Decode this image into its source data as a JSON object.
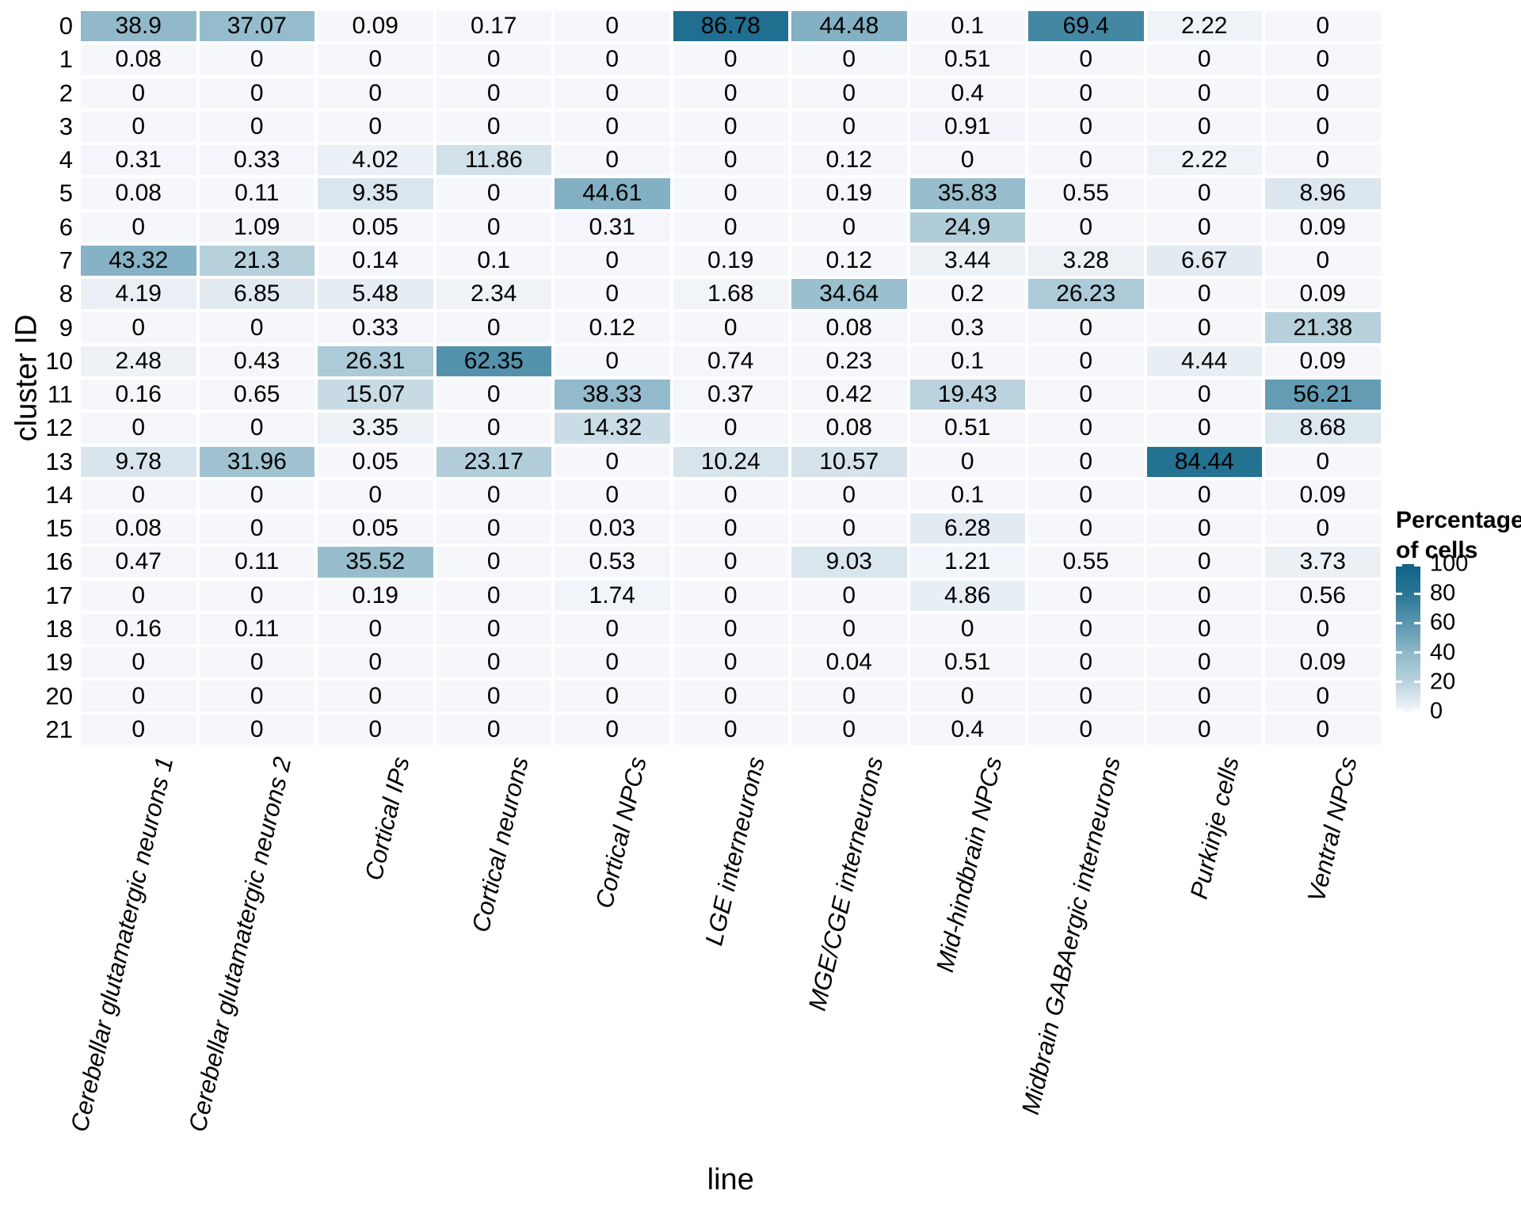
{
  "figure": {
    "x_axis_title": "line",
    "y_axis_title": "cluster ID"
  },
  "legend": {
    "title_line1": "Percentage",
    "title_line2": "of cells",
    "ticks": [
      100,
      80,
      60,
      40,
      20,
      0
    ]
  },
  "chart_data": {
    "type": "heatmap",
    "title": "",
    "xlabel": "line",
    "ylabel": "cluster ID",
    "legend_title": "Percentage of cells",
    "legend_position": "right",
    "value_domain": [
      0,
      100
    ],
    "grid": false,
    "rows": [
      "0",
      "1",
      "2",
      "3",
      "4",
      "5",
      "6",
      "7",
      "8",
      "9",
      "10",
      "11",
      "12",
      "13",
      "14",
      "15",
      "16",
      "17",
      "18",
      "19",
      "20",
      "21"
    ],
    "columns": [
      "Cerebellar glutamatergic neurons 1",
      "Cerebellar glutamatergic neurons 2",
      "Cortical IPs",
      "Cortical neurons",
      "Cortical NPCs",
      "LGE interneurons",
      "MGE/CGE interneurons",
      "Mid-hindbrain NPCs",
      "Midbrain GABAergic interneurons",
      "Purkinje cells",
      "Ventral NPCs"
    ],
    "values": [
      [
        38.9,
        37.07,
        0.09,
        0.17,
        0,
        86.78,
        44.48,
        0.1,
        69.4,
        2.22,
        0
      ],
      [
        0.08,
        0,
        0,
        0,
        0,
        0,
        0,
        0.51,
        0,
        0,
        0
      ],
      [
        0,
        0,
        0,
        0,
        0,
        0,
        0,
        0.4,
        0,
        0,
        0
      ],
      [
        0,
        0,
        0,
        0,
        0,
        0,
        0,
        0.91,
        0,
        0,
        0
      ],
      [
        0.31,
        0.33,
        4.02,
        11.86,
        0,
        0,
        0.12,
        0,
        0,
        2.22,
        0
      ],
      [
        0.08,
        0.11,
        9.35,
        0,
        44.61,
        0,
        0.19,
        35.83,
        0.55,
        0,
        8.96
      ],
      [
        0,
        1.09,
        0.05,
        0,
        0.31,
        0,
        0,
        24.9,
        0,
        0,
        0.09
      ],
      [
        43.32,
        21.3,
        0.14,
        0.1,
        0,
        0.19,
        0.12,
        3.44,
        3.28,
        6.67,
        0
      ],
      [
        4.19,
        6.85,
        5.48,
        2.34,
        0,
        1.68,
        34.64,
        0.2,
        26.23,
        0,
        0.09
      ],
      [
        0,
        0,
        0.33,
        0,
        0.12,
        0,
        0.08,
        0.3,
        0,
        0,
        21.38
      ],
      [
        2.48,
        0.43,
        26.31,
        62.35,
        0,
        0.74,
        0.23,
        0.1,
        0,
        4.44,
        0.09
      ],
      [
        0.16,
        0.65,
        15.07,
        0,
        38.33,
        0.37,
        0.42,
        19.43,
        0,
        0,
        56.21
      ],
      [
        0,
        0,
        3.35,
        0,
        14.32,
        0,
        0.08,
        0.51,
        0,
        0,
        8.68
      ],
      [
        9.78,
        31.96,
        0.05,
        23.17,
        0,
        10.24,
        10.57,
        0,
        0,
        84.44,
        0
      ],
      [
        0,
        0,
        0,
        0,
        0,
        0,
        0,
        0.1,
        0,
        0,
        0.09
      ],
      [
        0.08,
        0,
        0.05,
        0,
        0.03,
        0,
        0,
        6.28,
        0,
        0,
        0
      ],
      [
        0.47,
        0.11,
        35.52,
        0,
        0.53,
        0,
        9.03,
        1.21,
        0.55,
        0,
        3.73
      ],
      [
        0,
        0,
        0.19,
        0,
        1.74,
        0,
        0,
        4.86,
        0,
        0,
        0.56
      ],
      [
        0.16,
        0.11,
        0,
        0,
        0,
        0,
        0,
        0,
        0,
        0,
        0
      ],
      [
        0,
        0,
        0,
        0,
        0,
        0,
        0.04,
        0.51,
        0,
        0,
        0.09
      ],
      [
        0,
        0,
        0,
        0,
        0,
        0,
        0,
        0,
        0,
        0,
        0
      ],
      [
        0,
        0,
        0,
        0,
        0,
        0,
        0,
        0.4,
        0,
        0,
        0
      ]
    ],
    "colorscale": {
      "stops": [
        {
          "v": 0,
          "c": "#f6f7fb"
        },
        {
          "v": 20,
          "c": "#b9d2dd"
        },
        {
          "v": 40,
          "c": "#8fb8c9"
        },
        {
          "v": 60,
          "c": "#5a96af"
        },
        {
          "v": 80,
          "c": "#2b7695"
        },
        {
          "v": 100,
          "c": "#0d6287"
        }
      ]
    }
  }
}
